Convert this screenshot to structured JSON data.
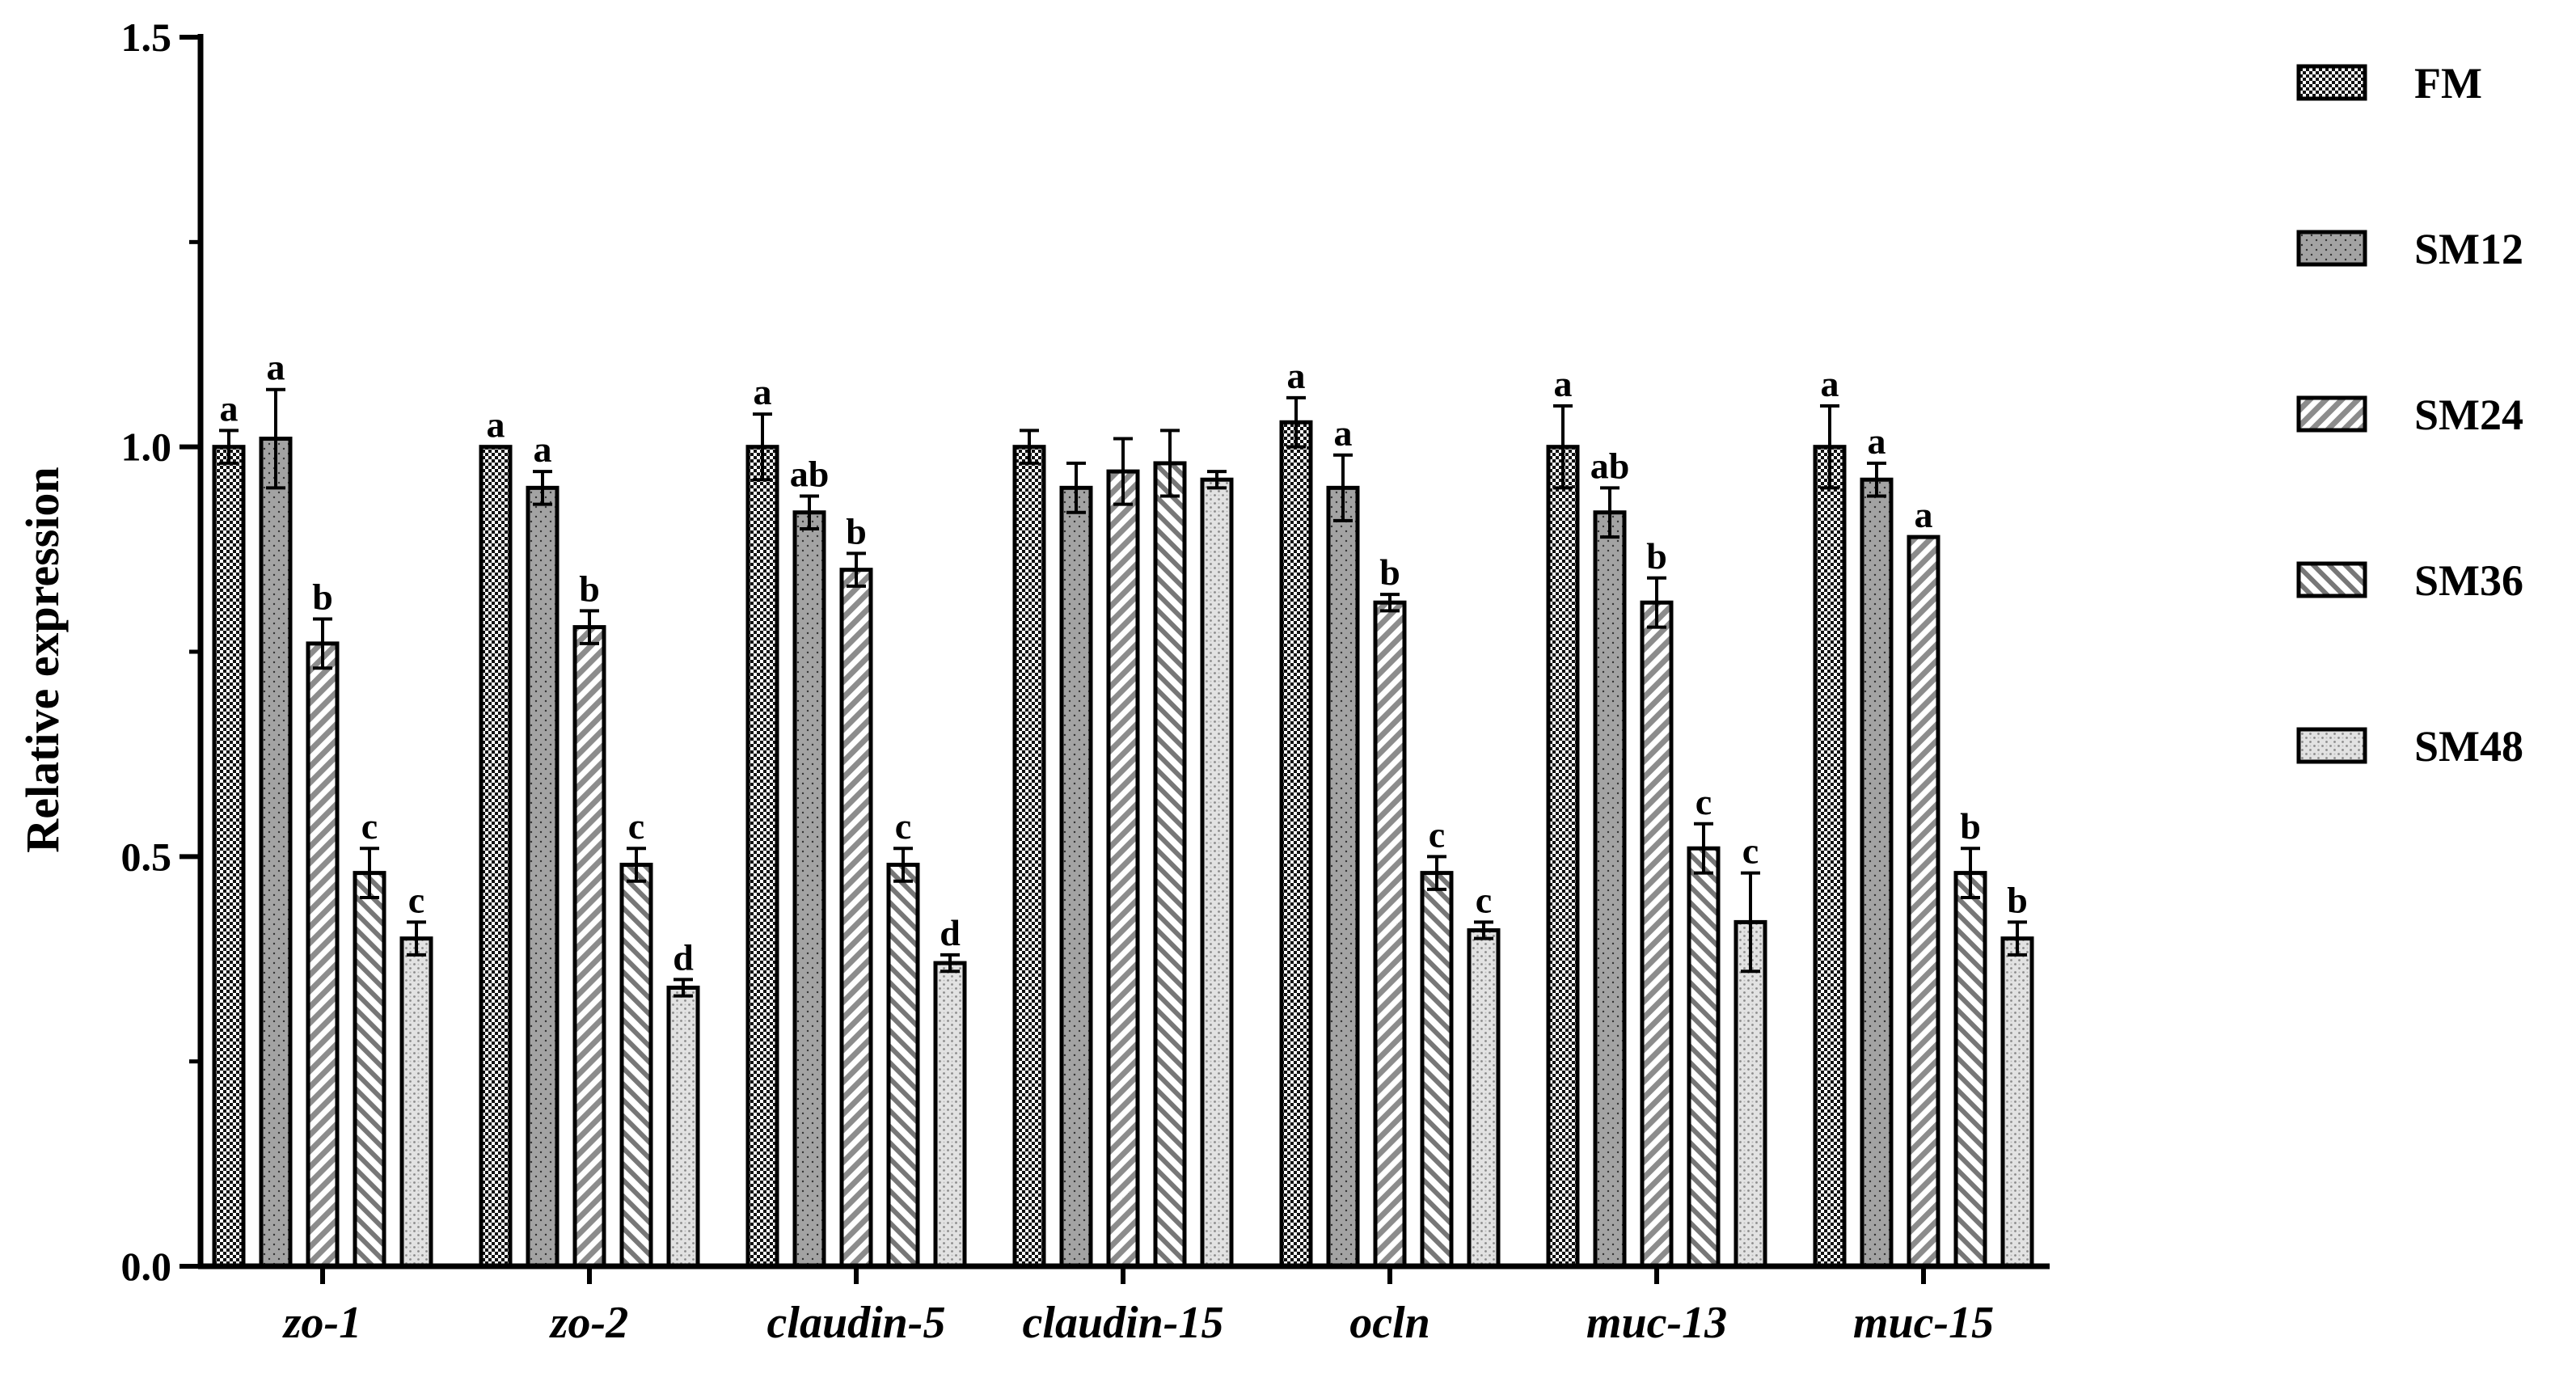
{
  "chart_data": {
    "type": "bar",
    "ylabel": "Relative expression",
    "xlabel": "",
    "ylim": [
      0,
      1.5
    ],
    "yticks": [
      "0.0",
      "0.5",
      "1.0",
      "1.5"
    ],
    "categories": [
      "zo-1",
      "zo-2",
      "claudin-5",
      "claudin-15",
      "ocln",
      "muc-13",
      "muc-15"
    ],
    "legend_position": "right",
    "series": [
      {
        "name": "FM",
        "pattern": "checker",
        "values": [
          1.0,
          1.0,
          1.0,
          1.0,
          1.03,
          1.0,
          1.0
        ],
        "errors": [
          0.02,
          0.0,
          0.04,
          0.02,
          0.03,
          0.05,
          0.05
        ],
        "letters": [
          "a",
          "a",
          "a",
          "",
          "a",
          "a",
          "a"
        ]
      },
      {
        "name": "SM12",
        "pattern": "dots",
        "values": [
          1.01,
          0.95,
          0.92,
          0.95,
          0.95,
          0.92,
          0.96
        ],
        "errors": [
          0.06,
          0.02,
          0.02,
          0.03,
          0.04,
          0.03,
          0.02
        ],
        "letters": [
          "a",
          "a",
          "ab",
          "",
          "a",
          "ab",
          "a"
        ]
      },
      {
        "name": "SM24",
        "pattern": "diag-right",
        "values": [
          0.76,
          0.78,
          0.85,
          0.97,
          0.81,
          0.81,
          0.89
        ],
        "errors": [
          0.03,
          0.02,
          0.02,
          0.04,
          0.01,
          0.03,
          0.0
        ],
        "letters": [
          "b",
          "b",
          "b",
          "",
          "b",
          "b",
          "a"
        ]
      },
      {
        "name": "SM36",
        "pattern": "diag-left",
        "values": [
          0.48,
          0.49,
          0.49,
          0.98,
          0.48,
          0.51,
          0.48
        ],
        "errors": [
          0.03,
          0.02,
          0.02,
          0.04,
          0.02,
          0.03,
          0.03
        ],
        "letters": [
          "c",
          "c",
          "c",
          "",
          "c",
          "c",
          "b"
        ]
      },
      {
        "name": "SM48",
        "pattern": "light-dots",
        "values": [
          0.4,
          0.34,
          0.37,
          0.96,
          0.41,
          0.42,
          0.4
        ],
        "errors": [
          0.02,
          0.01,
          0.01,
          0.01,
          0.01,
          0.06,
          0.02
        ],
        "letters": [
          "c",
          "d",
          "d",
          "",
          "c",
          "c",
          "b"
        ]
      }
    ]
  }
}
